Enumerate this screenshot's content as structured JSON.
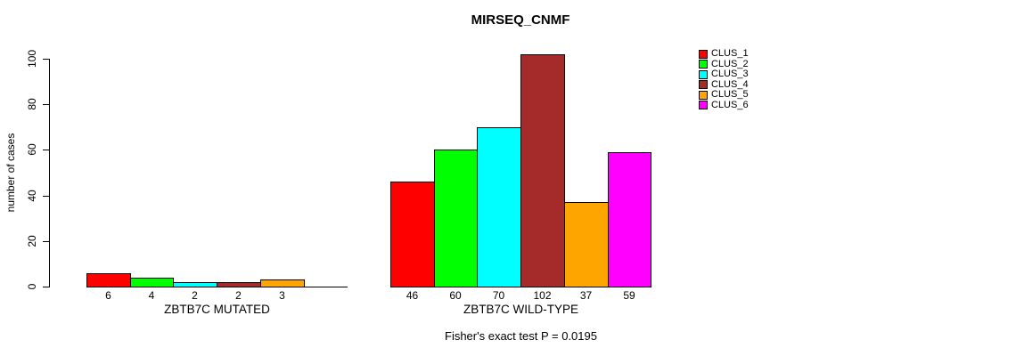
{
  "chart_data": {
    "type": "bar",
    "title": "MIRSEQ_CNMF",
    "ylabel": "number of cases",
    "ylim": [
      0,
      100
    ],
    "yticks": [
      0,
      20,
      40,
      60,
      80,
      100
    ],
    "grid": false,
    "legend_position": "right",
    "background_color": "#ffffff",
    "axis_color": "#000000",
    "clusters": [
      {
        "name": "CLUS_1",
        "color": "#FF0000"
      },
      {
        "name": "CLUS_2",
        "color": "#00FF00"
      },
      {
        "name": "CLUS_3",
        "color": "#00FFFF"
      },
      {
        "name": "CLUS_4",
        "color": "#A52A2A"
      },
      {
        "name": "CLUS_5",
        "color": "#FFA500"
      },
      {
        "name": "CLUS_6",
        "color": "#FF00FF"
      }
    ],
    "groups": [
      {
        "xlabel": "ZBTB7C MUTATED",
        "values": [
          6,
          4,
          2,
          2,
          3,
          0
        ],
        "bar_labels": [
          "6",
          "4",
          "2",
          "2",
          "3",
          ""
        ]
      },
      {
        "xlabel": "ZBTB7C WILD-TYPE",
        "values": [
          46,
          60,
          70,
          102,
          37,
          59
        ],
        "bar_labels": [
          "46",
          "60",
          "70",
          "102",
          "37",
          "59"
        ]
      }
    ],
    "annotation": "Fisher's exact test P = 0.0195"
  }
}
